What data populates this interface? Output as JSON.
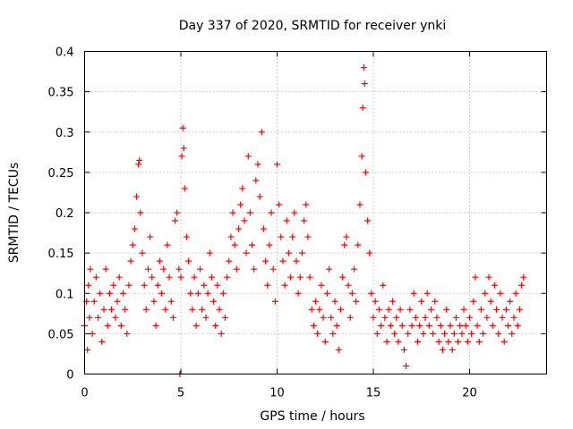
{
  "chart_data": {
    "type": "scatter",
    "title": "Day 337 of 2020, SRMTID for receiver ynki",
    "xlabel": "GPS time / hours",
    "ylabel": "SRMTID / TECUs",
    "xlim": [
      0,
      24
    ],
    "ylim": [
      0,
      0.4
    ],
    "grid": true,
    "marker": "+",
    "x_tick_values": [
      0,
      5,
      10,
      15,
      20
    ],
    "x_tick_labels": [
      "0",
      "5",
      "10",
      "15",
      "20"
    ],
    "y_tick_values": [
      0,
      0.05,
      0.1,
      0.15,
      0.2,
      0.25,
      0.3,
      0.35,
      0.4
    ],
    "y_tick_labels": [
      "0",
      "0.05",
      "0.1",
      "0.15",
      "0.2",
      "0.25",
      "0.3",
      "0.35",
      "0.4"
    ],
    "series": [
      {
        "name": "SRMTID",
        "color": "#ff0000",
        "points": [
          [
            0.0,
            0.06
          ],
          [
            0.1,
            0.09
          ],
          [
            0.15,
            0.03
          ],
          [
            0.2,
            0.11
          ],
          [
            0.25,
            0.07
          ],
          [
            0.3,
            0.13
          ],
          [
            0.4,
            0.05
          ],
          [
            0.5,
            0.09
          ],
          [
            0.6,
            0.12
          ],
          [
            0.7,
            0.07
          ],
          [
            0.8,
            0.1
          ],
          [
            0.9,
            0.04
          ],
          [
            1.0,
            0.08
          ],
          [
            1.1,
            0.13
          ],
          [
            1.2,
            0.06
          ],
          [
            1.3,
            0.1
          ],
          [
            1.4,
            0.08
          ],
          [
            1.5,
            0.11
          ],
          [
            1.6,
            0.07
          ],
          [
            1.7,
            0.09
          ],
          [
            1.8,
            0.12
          ],
          [
            1.9,
            0.06
          ],
          [
            2.0,
            0.1
          ],
          [
            2.1,
            0.08
          ],
          [
            2.2,
            0.05
          ],
          [
            2.3,
            0.11
          ],
          [
            2.4,
            0.14
          ],
          [
            2.5,
            0.16
          ],
          [
            2.6,
            0.18
          ],
          [
            2.7,
            0.22
          ],
          [
            2.8,
            0.26
          ],
          [
            2.85,
            0.265
          ],
          [
            2.9,
            0.2
          ],
          [
            3.0,
            0.15
          ],
          [
            3.1,
            0.11
          ],
          [
            3.2,
            0.08
          ],
          [
            3.3,
            0.13
          ],
          [
            3.4,
            0.17
          ],
          [
            3.5,
            0.12
          ],
          [
            3.6,
            0.09
          ],
          [
            3.7,
            0.06
          ],
          [
            3.8,
            0.11
          ],
          [
            3.9,
            0.14
          ],
          [
            4.0,
            0.1
          ],
          [
            4.1,
            0.13
          ],
          [
            4.2,
            0.08
          ],
          [
            4.3,
            0.16
          ],
          [
            4.4,
            0.12
          ],
          [
            4.5,
            0.09
          ],
          [
            4.6,
            0.07
          ],
          [
            4.7,
            0.19
          ],
          [
            4.8,
            0.2
          ],
          [
            4.9,
            0.13
          ],
          [
            4.95,
            0.0
          ],
          [
            5.0,
            0.12
          ],
          [
            5.05,
            0.27
          ],
          [
            5.1,
            0.305
          ],
          [
            5.15,
            0.28
          ],
          [
            5.2,
            0.23
          ],
          [
            5.3,
            0.17
          ],
          [
            5.4,
            0.14
          ],
          [
            5.5,
            0.1
          ],
          [
            5.6,
            0.08
          ],
          [
            5.7,
            0.12
          ],
          [
            5.8,
            0.06
          ],
          [
            5.9,
            0.1
          ],
          [
            6.0,
            0.13
          ],
          [
            6.1,
            0.08
          ],
          [
            6.2,
            0.11
          ],
          [
            6.3,
            0.07
          ],
          [
            6.4,
            0.1
          ],
          [
            6.5,
            0.15
          ],
          [
            6.6,
            0.12
          ],
          [
            6.7,
            0.09
          ],
          [
            6.8,
            0.06
          ],
          [
            6.9,
            0.11
          ],
          [
            7.0,
            0.08
          ],
          [
            7.1,
            0.05
          ],
          [
            7.2,
            0.1
          ],
          [
            7.3,
            0.07
          ],
          [
            7.4,
            0.12
          ],
          [
            7.5,
            0.14
          ],
          [
            7.6,
            0.17
          ],
          [
            7.7,
            0.2
          ],
          [
            7.8,
            0.16
          ],
          [
            7.9,
            0.13
          ],
          [
            8.0,
            0.18
          ],
          [
            8.1,
            0.21
          ],
          [
            8.2,
            0.23
          ],
          [
            8.3,
            0.19
          ],
          [
            8.4,
            0.15
          ],
          [
            8.5,
            0.27
          ],
          [
            8.6,
            0.2
          ],
          [
            8.7,
            0.16
          ],
          [
            8.8,
            0.13
          ],
          [
            8.9,
            0.24
          ],
          [
            9.0,
            0.26
          ],
          [
            9.1,
            0.22
          ],
          [
            9.2,
            0.3
          ],
          [
            9.3,
            0.18
          ],
          [
            9.4,
            0.14
          ],
          [
            9.5,
            0.11
          ],
          [
            9.6,
            0.16
          ],
          [
            9.7,
            0.2
          ],
          [
            9.8,
            0.13
          ],
          [
            9.9,
            0.09
          ],
          [
            10.0,
            0.26
          ],
          [
            10.1,
            0.21
          ],
          [
            10.2,
            0.17
          ],
          [
            10.3,
            0.14
          ],
          [
            10.4,
            0.11
          ],
          [
            10.5,
            0.19
          ],
          [
            10.6,
            0.15
          ],
          [
            10.7,
            0.12
          ],
          [
            10.8,
            0.17
          ],
          [
            10.9,
            0.2
          ],
          [
            11.0,
            0.14
          ],
          [
            11.1,
            0.1
          ],
          [
            11.2,
            0.12
          ],
          [
            11.3,
            0.15
          ],
          [
            11.4,
            0.19
          ],
          [
            11.5,
            0.21
          ],
          [
            11.6,
            0.17
          ],
          [
            11.7,
            0.12
          ],
          [
            11.8,
            0.08
          ],
          [
            11.9,
            0.06
          ],
          [
            12.0,
            0.09
          ],
          [
            12.1,
            0.05
          ],
          [
            12.2,
            0.08
          ],
          [
            12.3,
            0.11
          ],
          [
            12.4,
            0.07
          ],
          [
            12.5,
            0.04
          ],
          [
            12.6,
            0.1
          ],
          [
            12.7,
            0.13
          ],
          [
            12.8,
            0.07
          ],
          [
            12.9,
            0.05
          ],
          [
            13.0,
            0.09
          ],
          [
            13.1,
            0.06
          ],
          [
            13.2,
            0.03
          ],
          [
            13.3,
            0.08
          ],
          [
            13.4,
            0.12
          ],
          [
            13.5,
            0.16
          ],
          [
            13.6,
            0.17
          ],
          [
            13.7,
            0.11
          ],
          [
            13.8,
            0.07
          ],
          [
            13.9,
            0.1
          ],
          [
            14.0,
            0.13
          ],
          [
            14.1,
            0.09
          ],
          [
            14.2,
            0.16
          ],
          [
            14.3,
            0.21
          ],
          [
            14.4,
            0.27
          ],
          [
            14.45,
            0.33
          ],
          [
            14.5,
            0.38
          ],
          [
            14.55,
            0.36
          ],
          [
            14.6,
            0.25
          ],
          [
            14.7,
            0.19
          ],
          [
            14.8,
            0.15
          ],
          [
            14.9,
            0.1
          ],
          [
            15.0,
            0.07
          ],
          [
            15.1,
            0.09
          ],
          [
            15.2,
            0.05
          ],
          [
            15.3,
            0.08
          ],
          [
            15.4,
            0.06
          ],
          [
            15.5,
            0.11
          ],
          [
            15.6,
            0.07
          ],
          [
            15.7,
            0.04
          ],
          [
            15.8,
            0.08
          ],
          [
            15.9,
            0.06
          ],
          [
            16.0,
            0.09
          ],
          [
            16.1,
            0.05
          ],
          [
            16.2,
            0.07
          ],
          [
            16.3,
            0.04
          ],
          [
            16.4,
            0.08
          ],
          [
            16.5,
            0.06
          ],
          [
            16.6,
            0.03
          ],
          [
            16.7,
            0.01
          ],
          [
            16.8,
            0.05
          ],
          [
            16.9,
            0.08
          ],
          [
            17.0,
            0.06
          ],
          [
            17.1,
            0.1
          ],
          [
            17.2,
            0.07
          ],
          [
            17.3,
            0.04
          ],
          [
            17.4,
            0.06
          ],
          [
            17.5,
            0.09
          ],
          [
            17.6,
            0.05
          ],
          [
            17.7,
            0.07
          ],
          [
            17.8,
            0.1
          ],
          [
            17.9,
            0.06
          ],
          [
            18.0,
            0.08
          ],
          [
            18.1,
            0.05
          ],
          [
            18.2,
            0.09
          ],
          [
            18.3,
            0.07
          ],
          [
            18.4,
            0.04
          ],
          [
            18.5,
            0.06
          ],
          [
            18.6,
            0.03
          ],
          [
            18.7,
            0.05
          ],
          [
            18.8,
            0.08
          ],
          [
            18.9,
            0.04
          ],
          [
            19.0,
            0.06
          ],
          [
            19.1,
            0.03
          ],
          [
            19.2,
            0.05
          ],
          [
            19.3,
            0.07
          ],
          [
            19.4,
            0.04
          ],
          [
            19.5,
            0.06
          ],
          [
            19.6,
            0.05
          ],
          [
            19.7,
            0.08
          ],
          [
            19.8,
            0.06
          ],
          [
            19.9,
            0.04
          ],
          [
            20.0,
            0.07
          ],
          [
            20.1,
            0.05
          ],
          [
            20.2,
            0.09
          ],
          [
            20.3,
            0.12
          ],
          [
            20.4,
            0.06
          ],
          [
            20.5,
            0.04
          ],
          [
            20.6,
            0.08
          ],
          [
            20.7,
            0.05
          ],
          [
            20.8,
            0.1
          ],
          [
            20.9,
            0.07
          ],
          [
            21.0,
            0.12
          ],
          [
            21.1,
            0.09
          ],
          [
            21.2,
            0.06
          ],
          [
            21.3,
            0.11
          ],
          [
            21.4,
            0.08
          ],
          [
            21.5,
            0.05
          ],
          [
            21.6,
            0.1
          ],
          [
            21.7,
            0.07
          ],
          [
            21.8,
            0.04
          ],
          [
            21.9,
            0.08
          ],
          [
            22.0,
            0.06
          ],
          [
            22.1,
            0.09
          ],
          [
            22.2,
            0.05
          ],
          [
            22.3,
            0.07
          ],
          [
            22.4,
            0.1
          ],
          [
            22.5,
            0.06
          ],
          [
            22.6,
            0.08
          ],
          [
            22.7,
            0.11
          ],
          [
            22.8,
            0.12
          ]
        ]
      }
    ]
  }
}
